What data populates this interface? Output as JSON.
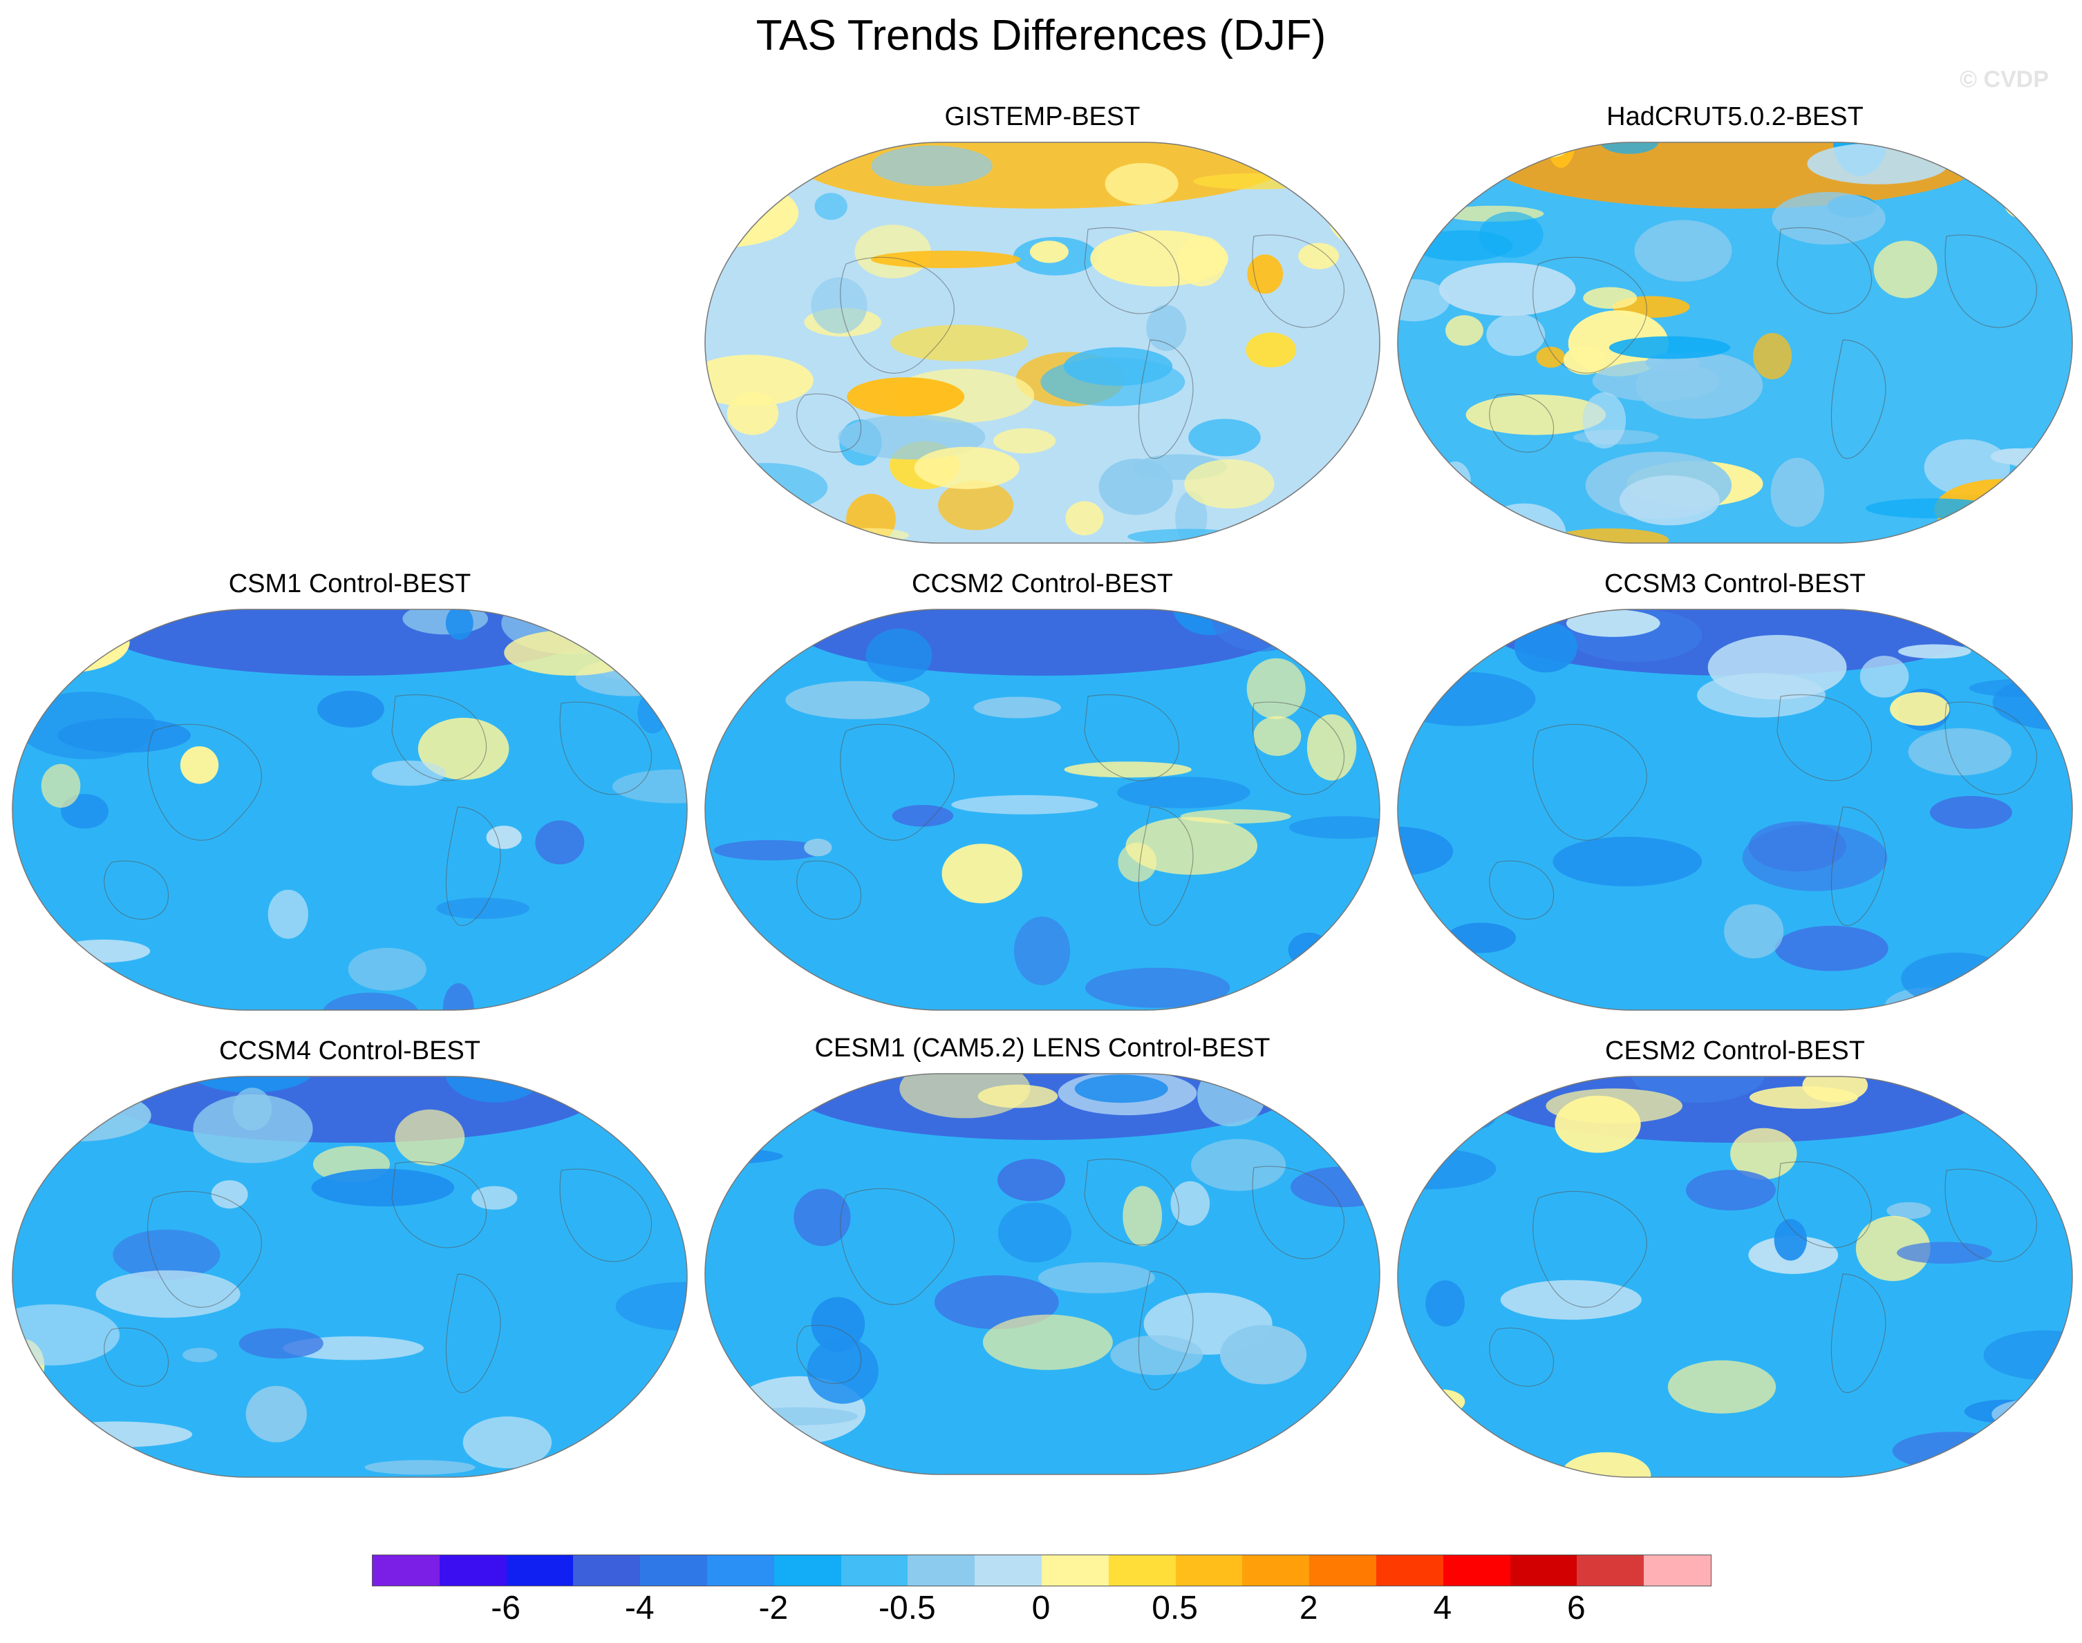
{
  "title": "TAS Trends Differences (DJF)",
  "watermark": "© CVDP",
  "panels": [
    {
      "id": "gistemp",
      "title": "GISTEMP-BEST",
      "scheme": "warm"
    },
    {
      "id": "hadcrut",
      "title": "HadCRUT5.0.2-BEST",
      "scheme": "mixed"
    },
    {
      "id": "csm1",
      "title": "CSM1 Control-BEST",
      "scheme": "cool"
    },
    {
      "id": "ccsm2",
      "title": "CCSM2 Control-BEST",
      "scheme": "cool"
    },
    {
      "id": "ccsm3",
      "title": "CCSM3 Control-BEST",
      "scheme": "cool"
    },
    {
      "id": "ccsm4",
      "title": "CCSM4 Control-BEST",
      "scheme": "cool"
    },
    {
      "id": "cesm1",
      "title": "CESM1 (CAM5.2) LENS Control-BEST",
      "scheme": "cool"
    },
    {
      "id": "cesm2",
      "title": "CESM2 Control-BEST",
      "scheme": "cool"
    }
  ],
  "colorbar": {
    "colors": [
      "#7b1ee6",
      "#3a0ef0",
      "#1020f2",
      "#3c5fdc",
      "#2f78e8",
      "#2a90f5",
      "#12adf6",
      "#42bdf6",
      "#8ccbee",
      "#b9dff5",
      "#fff59a",
      "#ffde3a",
      "#ffbe1a",
      "#ffa00a",
      "#ff7a00",
      "#ff3a00",
      "#ff0000",
      "#d20000",
      "#d83a3a",
      "#ffb0b4"
    ],
    "labels": [
      "-6",
      "-4",
      "-2",
      "-0.5",
      "0",
      "0.5",
      "2",
      "4",
      "6"
    ]
  }
}
